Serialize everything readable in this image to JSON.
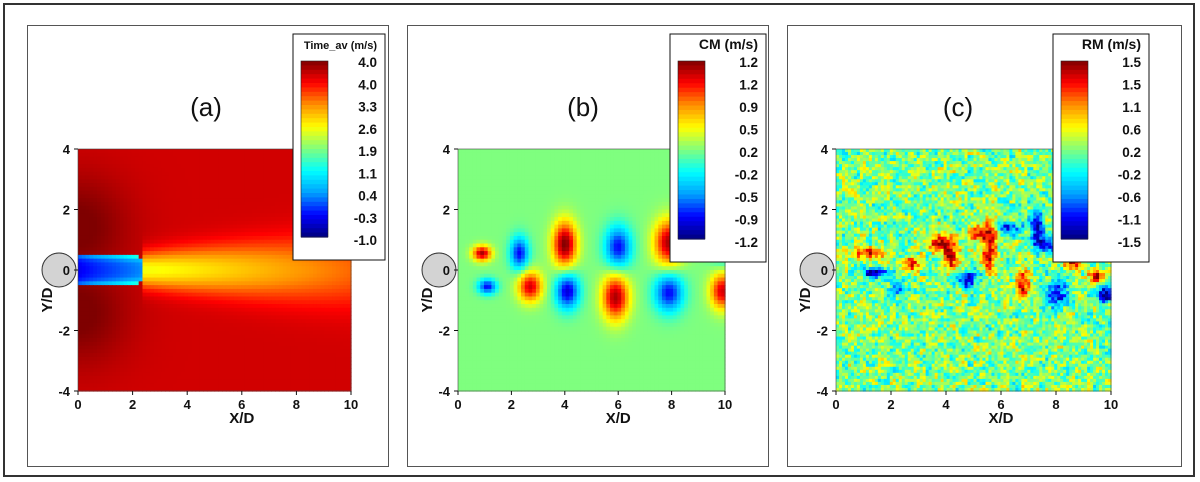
{
  "figure": {
    "panels": [
      {
        "label": "(a)",
        "colorbar_title": "Time_av (m/s)",
        "colorbar_ticks": [
          "4.0",
          "4.0",
          "3.3",
          "2.6",
          "1.9",
          "1.1",
          "0.4",
          "-0.3",
          "-1.0"
        ],
        "xlabel": "X/D",
        "ylabel": "Y/D"
      },
      {
        "label": "(b)",
        "colorbar_title": "CM (m/s)",
        "colorbar_ticks": [
          "1.2",
          "1.2",
          "0.9",
          "0.5",
          "0.2",
          "-0.2",
          "-0.5",
          "-0.9",
          "-1.2"
        ],
        "xlabel": "X/D",
        "ylabel": "Y/D"
      },
      {
        "label": "(c)",
        "colorbar_title": "RM (m/s)",
        "colorbar_ticks": [
          "1.5",
          "1.5",
          "1.1",
          "0.6",
          "0.2",
          "-0.2",
          "-0.6",
          "-1.1",
          "-1.5"
        ],
        "xlabel": "X/D",
        "ylabel": "Y/D"
      }
    ],
    "x_ticks": [
      "0",
      "2",
      "4",
      "6",
      "8",
      "10"
    ],
    "y_ticks": [
      "4",
      "2",
      "0",
      "-2",
      "-4"
    ]
  },
  "chart_data": [
    {
      "type": "heatmap",
      "field": "time-averaged velocity",
      "xlim": [
        0,
        10
      ],
      "ylim": [
        -4,
        4
      ],
      "colorbar_range": [
        -1.0,
        4.0
      ],
      "colormap": "jet",
      "features": "uniform freestream ~3.6 m/s; low-velocity wake (~0) behind cylinder at Y/D 0 extending to X/D ~2 then recovering; darker high-speed region near cylinder shoulders"
    },
    {
      "type": "heatmap",
      "field": "coherent mode (CM)",
      "xlim": [
        0,
        10
      ],
      "ylim": [
        -4,
        4
      ],
      "colorbar_range": [
        -1.2,
        1.2
      ],
      "colormap": "jet",
      "features": "alternating positive/negative vortex pairs above and below centerline, spaced ~2 D along X/D"
    },
    {
      "type": "heatmap",
      "field": "residual mode (RM)",
      "xlim": [
        0,
        10
      ],
      "ylim": [
        -4,
        4
      ],
      "colorbar_range": [
        -1.5,
        1.5
      ],
      "colormap": "jet",
      "features": "noisy background near 0 with intermittent strong positive/negative patches in the wake, growing downstream"
    }
  ],
  "colors": {
    "jet": [
      "#00007f",
      "#0000ff",
      "#00a0ff",
      "#00ffff",
      "#7fff7f",
      "#ffff00",
      "#ff9000",
      "#ff0000",
      "#7f0000"
    ],
    "cylinder_fill": "#d3d3d3",
    "frame": "#333333"
  }
}
